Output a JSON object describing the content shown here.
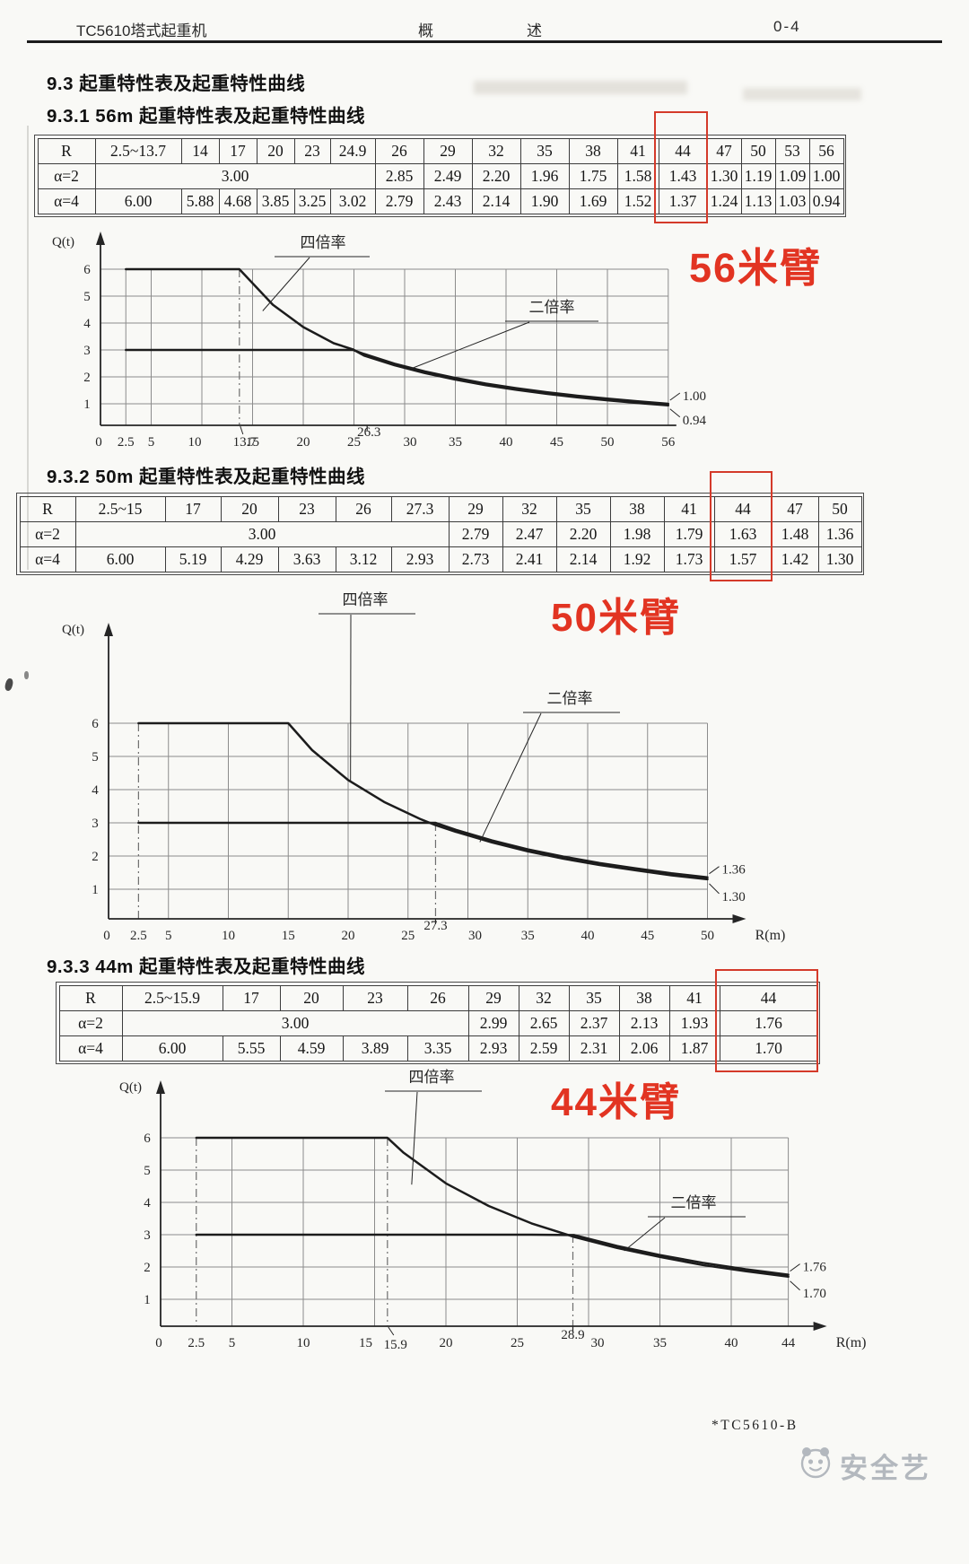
{
  "header": {
    "left": "TC5610塔式起重机",
    "center": "概述",
    "right": "0-4"
  },
  "sections": {
    "s93": "9.3 起重特性表及起重特性曲线",
    "s931": "9.3.1 56m 起重特性表及起重特性曲线",
    "s932": "9.3.2 50m 起重特性表及起重特性曲线",
    "s933": "9.3.3  44m 起重特性表及起重特性曲线"
  },
  "tables": [
    {
      "corner": "R",
      "row2_label": "α=2",
      "row3_label": "α=4",
      "radii": [
        "2.5~13.7",
        "14",
        "17",
        "20",
        "23",
        "24.9",
        "26",
        "29",
        "32",
        "35",
        "38",
        "41",
        "44",
        "47",
        "50",
        "53",
        "56"
      ],
      "alpha2_merged": "3.00",
      "alpha2_merge_span": 6,
      "alpha2": [
        "2.85",
        "2.49",
        "2.20",
        "1.96",
        "1.75",
        "1.58",
        "1.43",
        "1.30",
        "1.19",
        "1.09",
        "1.00"
      ],
      "alpha4": [
        "6.00",
        "5.88",
        "4.68",
        "3.85",
        "3.25",
        "3.02",
        "2.79",
        "2.43",
        "2.14",
        "1.90",
        "1.69",
        "1.52",
        "1.37",
        "1.24",
        "1.13",
        "1.03",
        "0.94"
      ],
      "highlight_radius": "44"
    },
    {
      "corner": "R",
      "row2_label": "α=2",
      "row3_label": "α=4",
      "radii": [
        "2.5~15",
        "17",
        "20",
        "23",
        "26",
        "27.3",
        "29",
        "32",
        "35",
        "38",
        "41",
        "44",
        "47",
        "50"
      ],
      "alpha2_merged": "3.00",
      "alpha2_merge_span": 6,
      "alpha2": [
        "2.79",
        "2.47",
        "2.20",
        "1.98",
        "1.79",
        "1.63",
        "1.48",
        "1.36"
      ],
      "alpha4": [
        "6.00",
        "5.19",
        "4.29",
        "3.63",
        "3.12",
        "2.93",
        "2.73",
        "2.41",
        "2.14",
        "1.92",
        "1.73",
        "1.57",
        "1.42",
        "1.30"
      ],
      "highlight_radius": "44"
    },
    {
      "corner": "R",
      "row2_label": "α=2",
      "row3_label": "α=4",
      "radii": [
        "2.5~15.9",
        "17",
        "20",
        "23",
        "26",
        "29",
        "32",
        "35",
        "38",
        "41",
        "44"
      ],
      "alpha2_merged": "3.00",
      "alpha2_merge_span": 5,
      "alpha2": [
        "2.99",
        "2.65",
        "2.37",
        "2.13",
        "1.93",
        "1.76"
      ],
      "alpha4": [
        "6.00",
        "5.55",
        "4.59",
        "3.89",
        "3.35",
        "2.93",
        "2.59",
        "2.31",
        "2.06",
        "1.87",
        "1.70"
      ],
      "highlight_radius": "44"
    }
  ],
  "annotations": {
    "jib56": "56米臂",
    "jib50": "50米臂",
    "jib44": "44米臂"
  },
  "footer": {
    "code": "*TC5610-B",
    "watermark": "安全艺"
  },
  "chart_data": [
    {
      "type": "line",
      "annotation": "56米臂",
      "y_unit": "Q(t)",
      "ylim": [
        0,
        6
      ],
      "xlim": [
        0,
        56
      ],
      "grid": true,
      "y_ticks": [
        6,
        5,
        4,
        3,
        2,
        1
      ],
      "x_ticks": [
        "0",
        "2.5",
        "5",
        "10",
        "13.7",
        "15",
        "20",
        "25",
        "26.3",
        "30",
        "35",
        "40",
        "45",
        "50",
        "56"
      ],
      "series": [
        {
          "name": "四倍率",
          "end_label": "0.94",
          "points": [
            [
              2.5,
              6
            ],
            [
              13.7,
              6
            ],
            [
              14,
              5.88
            ],
            [
              17,
              4.68
            ],
            [
              20,
              3.85
            ],
            [
              23,
              3.25
            ],
            [
              24.9,
              3.02
            ],
            [
              26,
              2.79
            ],
            [
              29,
              2.43
            ],
            [
              32,
              2.14
            ],
            [
              35,
              1.9
            ],
            [
              38,
              1.69
            ],
            [
              41,
              1.52
            ],
            [
              44,
              1.37
            ],
            [
              47,
              1.24
            ],
            [
              50,
              1.13
            ],
            [
              53,
              1.03
            ],
            [
              56,
              0.94
            ]
          ]
        },
        {
          "name": "二倍率",
          "end_label": "1.00",
          "points": [
            [
              2.5,
              3
            ],
            [
              24.9,
              3
            ],
            [
              26,
              2.85
            ],
            [
              29,
              2.49
            ],
            [
              32,
              2.2
            ],
            [
              35,
              1.96
            ],
            [
              38,
              1.75
            ],
            [
              41,
              1.58
            ],
            [
              44,
              1.43
            ],
            [
              47,
              1.3
            ],
            [
              50,
              1.19
            ],
            [
              53,
              1.09
            ],
            [
              56,
              1.0
            ]
          ]
        }
      ]
    },
    {
      "type": "line",
      "annotation": "50米臂",
      "y_unit": "Q(t)",
      "x_unit": "R(m)",
      "ylim": [
        0,
        6
      ],
      "xlim": [
        0,
        50
      ],
      "grid": true,
      "y_ticks": [
        6,
        5,
        4,
        3,
        2,
        1
      ],
      "x_ticks": [
        "0",
        "2.5",
        "5",
        "10",
        "15",
        "20",
        "25",
        "27.3",
        "30",
        "35",
        "40",
        "45",
        "50"
      ],
      "series": [
        {
          "name": "四倍率",
          "end_label": "1.30",
          "points": [
            [
              2.5,
              6
            ],
            [
              15,
              6
            ],
            [
              17,
              5.19
            ],
            [
              20,
              4.29
            ],
            [
              23,
              3.63
            ],
            [
              26,
              3.12
            ],
            [
              27.3,
              2.93
            ],
            [
              29,
              2.73
            ],
            [
              32,
              2.41
            ],
            [
              35,
              2.14
            ],
            [
              38,
              1.92
            ],
            [
              41,
              1.73
            ],
            [
              44,
              1.57
            ],
            [
              47,
              1.42
            ],
            [
              50,
              1.3
            ]
          ]
        },
        {
          "name": "二倍率",
          "end_label": "1.36",
          "points": [
            [
              2.5,
              3
            ],
            [
              27.3,
              3
            ],
            [
              29,
              2.79
            ],
            [
              32,
              2.47
            ],
            [
              35,
              2.2
            ],
            [
              38,
              1.98
            ],
            [
              41,
              1.79
            ],
            [
              44,
              1.63
            ],
            [
              47,
              1.48
            ],
            [
              50,
              1.36
            ]
          ]
        }
      ]
    },
    {
      "type": "line",
      "annotation": "44米臂",
      "y_unit": "Q(t)",
      "x_unit": "R(m)",
      "ylim": [
        0,
        6
      ],
      "xlim": [
        0,
        44
      ],
      "grid": true,
      "y_ticks": [
        6,
        5,
        4,
        3,
        2,
        1
      ],
      "x_ticks": [
        "0",
        "2.5",
        "5",
        "10",
        "15",
        "15.9",
        "20",
        "25",
        "28.9",
        "30",
        "35",
        "40",
        "44"
      ],
      "series": [
        {
          "name": "四倍率",
          "end_label": "1.70",
          "points": [
            [
              2.5,
              6
            ],
            [
              15.9,
              6
            ],
            [
              17,
              5.55
            ],
            [
              20,
              4.59
            ],
            [
              23,
              3.89
            ],
            [
              26,
              3.35
            ],
            [
              29,
              2.93
            ],
            [
              32,
              2.59
            ],
            [
              35,
              2.31
            ],
            [
              38,
              2.06
            ],
            [
              41,
              1.87
            ],
            [
              44,
              1.7
            ]
          ]
        },
        {
          "name": "二倍率",
          "end_label": "1.76",
          "points": [
            [
              2.5,
              3
            ],
            [
              26,
              3
            ],
            [
              29,
              2.99
            ],
            [
              32,
              2.65
            ],
            [
              35,
              2.37
            ],
            [
              38,
              2.13
            ],
            [
              41,
              1.93
            ],
            [
              44,
              1.76
            ]
          ]
        }
      ]
    }
  ]
}
